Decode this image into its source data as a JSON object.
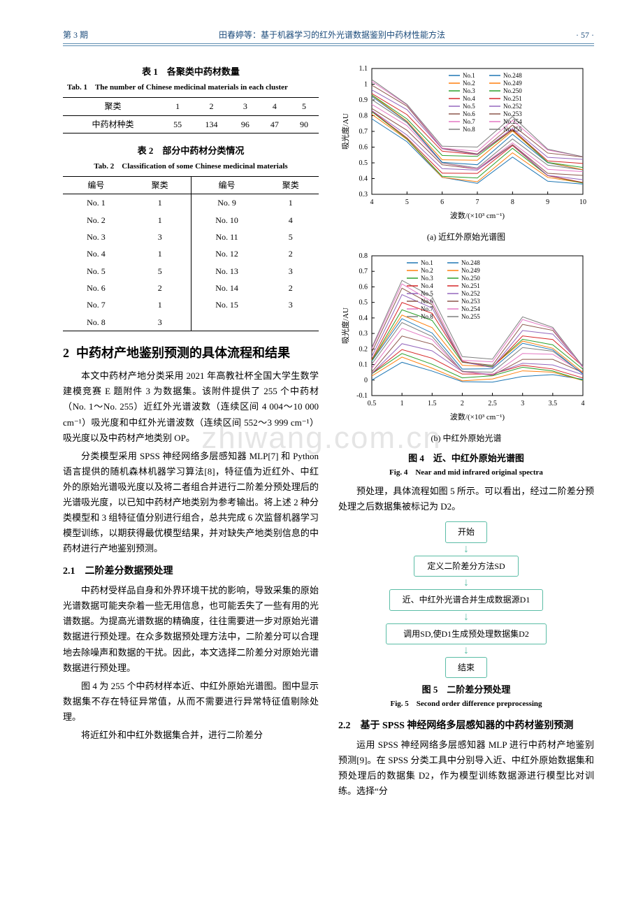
{
  "header": {
    "issue": "第 3 期",
    "running_title": "田春婷等：基于机器学习的红外光谱数据鉴别中药材性能方法",
    "page": "· 57 ·"
  },
  "watermark": "zhiwang.com.cn",
  "table1": {
    "title_cn": "表 1　各聚类中药材数量",
    "title_en": "Tab. 1　The number of Chinese medicinal materials in each cluster",
    "header": [
      "聚类",
      "1",
      "2",
      "3",
      "4",
      "5"
    ],
    "row": [
      "中药材种类",
      "55",
      "134",
      "96",
      "47",
      "90"
    ]
  },
  "table2": {
    "title_cn": "表 2　部分中药材分类情况",
    "title_en": "Tab. 2　Classification of some Chinese medicinal materials",
    "col_headers": [
      "编号",
      "聚类"
    ],
    "left_rows": [
      [
        "No. 1",
        "1"
      ],
      [
        "No. 2",
        "1"
      ],
      [
        "No. 3",
        "3"
      ],
      [
        "No. 4",
        "1"
      ],
      [
        "No. 5",
        "5"
      ],
      [
        "No. 6",
        "2"
      ],
      [
        "No. 7",
        "1"
      ],
      [
        "No. 8",
        "3"
      ]
    ],
    "right_rows": [
      [
        "No. 9",
        "1"
      ],
      [
        "No. 10",
        "4"
      ],
      [
        "No. 11",
        "5"
      ],
      [
        "No. 12",
        "2"
      ],
      [
        "No. 13",
        "3"
      ],
      [
        "No. 14",
        "2"
      ],
      [
        "No. 15",
        "3"
      ]
    ]
  },
  "section2": {
    "heading": "中药材产地鉴别预测的具体流程和结果",
    "num": "2",
    "p1": "本文中药材产地分类采用 2021 年高教社杯全国大学生数学建模竞赛 E 题附件 3 为数据集。该附件提供了 255 个中药材（No. 1～No. 255）近红外光谱波数（连续区间 4 004～10 000 cm⁻¹）吸光度和中红外光谱波数（连续区间 552～3 999 cm⁻¹）吸光度以及中药材产地类别 OP。",
    "p2": "分类模型采用 SPSS 神经网络多层感知器 MLP[7] 和 Python 语言提供的随机森林机器学习算法[8]，特征值为近红外、中红外的原始光谱吸光度以及将二者组合并进行二阶差分预处理后的光谱吸光度，以已知中药材产地类别为参考输出。将上述 2 种分类模型和 3 组特征值分别进行组合，总共完成 6 次监督机器学习模型训练，以期获得最优模型结果，并对缺失产地类别信息的中药材进行产地鉴别预测。",
    "sub21_title": "2.1　二阶差分数据预处理",
    "sub21_p1": "中药材受样品自身和外界环境干扰的影响，导致采集的原始光谱数据可能夹杂着一些无用信息，也可能丢失了一些有用的光谱数据。为提高光谱数据的精确度，往往需要进一步对原始光谱数据进行预处理。在众多数据预处理方法中，二阶差分可以合理地去除噪声和数据的干扰。因此，本文选择二阶差分对原始光谱数据进行预处理。",
    "sub21_p2": "图 4 为 255 个中药材样本近、中红外原始光谱图。图中显示数据集不存在特征异常值，从而不需要进行异常特征值剔除处理。",
    "sub21_p3": "将近红外和中红外数据集合并，进行二阶差分",
    "right_p1": "预处理，具体流程如图 5 所示。可以看出，经过二阶差分预处理之后数据集被标记为 D2。",
    "sub22_title": "2.2　基于 SPSS 神经网络多层感知器的中药材鉴别预测",
    "sub22_p1": "运用 SPSS 神经网络多层感知器 MLP 进行中药材产地鉴别预测[9]。在 SPSS 分类工具中分别导入近、中红外原始数据集和预处理后的数据集 D2，作为模型训练数据源进行模型比对训练。选择“分"
  },
  "fig4": {
    "caption_cn": "图 4　近、中红外原始光谱图",
    "caption_en": "Fig. 4　Near and mid infrared original spectra",
    "sub_a": "(a) 近红外原始光谱图",
    "sub_b": "(b) 中红外原始光谱",
    "xlabel": "波数/(×10³ cm⁻¹)",
    "ylabel": "吸光度/AU",
    "legend_left": [
      "No.1",
      "No.2",
      "No.3",
      "No.4",
      "No.5",
      "No.6",
      "No.7",
      "No.8"
    ],
    "legend_right": [
      "No.248",
      "No.249",
      "No.250",
      "No.251",
      "No.252",
      "No.253",
      "No.254",
      "No.255"
    ],
    "chartA": {
      "type": "line",
      "xlim": [
        4,
        10
      ],
      "xticks": [
        4,
        5,
        6,
        7,
        8,
        9,
        10
      ],
      "ylim": [
        0.3,
        1.1
      ],
      "yticks": [
        0.3,
        0.4,
        0.5,
        0.6,
        0.7,
        0.8,
        0.9,
        1.0,
        1.1
      ],
      "band_top": [
        1.02,
        0.88,
        0.62,
        0.6,
        0.78,
        0.58,
        0.55
      ],
      "band_bottom": [
        0.78,
        0.62,
        0.4,
        0.38,
        0.55,
        0.38,
        0.35
      ],
      "colors": [
        "#1f77b4",
        "#ff7f0e",
        "#2ca02c",
        "#d62728",
        "#9467bd",
        "#8c564b",
        "#e377c2",
        "#7f7f7f",
        "#1f77b4",
        "#ff7f0e",
        "#2ca02c",
        "#d62728",
        "#9467bd",
        "#8c564b",
        "#e377c2",
        "#7f7f7f"
      ]
    },
    "chartB": {
      "type": "line",
      "xlim": [
        0.5,
        4.0
      ],
      "xticks": [
        0.5,
        1.0,
        1.5,
        2.0,
        2.5,
        3.0,
        3.5,
        4.0
      ],
      "ylim": [
        -0.1,
        0.8
      ],
      "yticks": [
        -0.1,
        0,
        0.1,
        0.2,
        0.3,
        0.4,
        0.5,
        0.6,
        0.7,
        0.8
      ],
      "band_top": [
        0.2,
        0.65,
        0.55,
        0.15,
        0.12,
        0.4,
        0.35,
        0.1
      ],
      "band_bottom": [
        0.0,
        0.1,
        0.05,
        0.0,
        0.0,
        0.02,
        0.02,
        0.0
      ]
    }
  },
  "fig5": {
    "caption_cn": "图 5　二阶差分预处理",
    "caption_en": "Fig. 5　Second order difference preprocessing",
    "nodes": [
      "开始",
      "定义二阶差分方法SD",
      "近、中红外光谱合并生成数据源D1",
      "调用SD,使D1生成预处理数据集D2",
      "结束"
    ],
    "node_widths": [
      60,
      150,
      220,
      230,
      60
    ],
    "border_color": "#5bbda6"
  }
}
